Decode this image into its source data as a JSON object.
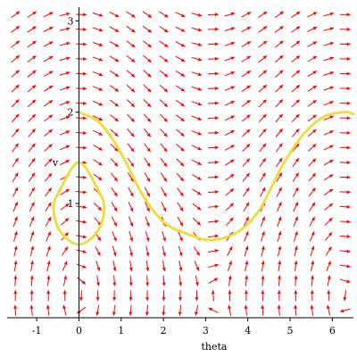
{
  "chart_data": {
    "type": "vector_field_phase_portrait",
    "xlabel": "theta",
    "ylabel": "v",
    "xlim": [
      -1.7,
      6.5
    ],
    "ylim": [
      -0.25,
      3.15
    ],
    "x_ticks": [
      -1,
      0,
      1,
      2,
      3,
      4,
      5,
      6
    ],
    "y_ticks": [
      1,
      2,
      3
    ],
    "field": {
      "equations": "theta' = v, v' = -sin(theta)",
      "grid_columns": 21,
      "grid_rows": 21,
      "arrow_color": "#ff0000"
    },
    "trajectories": [
      {
        "color": "#e8e040",
        "description": "closed orbit around (0, 1)",
        "points": [
          [
            0.0,
            1.45
          ],
          [
            0.45,
            1.15
          ],
          [
            0.6,
            0.95
          ],
          [
            0.45,
            0.7
          ],
          [
            0.0,
            0.55
          ],
          [
            -0.45,
            0.7
          ],
          [
            -0.6,
            0.95
          ],
          [
            -0.45,
            1.15
          ],
          [
            0.0,
            1.45
          ]
        ]
      },
      {
        "color": "#e8e040",
        "description": "wave-shaped open trajectory",
        "points": [
          [
            0.0,
            2.0
          ],
          [
            0.5,
            1.88
          ],
          [
            1.0,
            1.55
          ],
          [
            1.5,
            1.1
          ],
          [
            2.0,
            0.8
          ],
          [
            2.5,
            0.68
          ],
          [
            3.14,
            0.6
          ],
          [
            3.8,
            0.7
          ],
          [
            4.3,
            0.95
          ],
          [
            4.8,
            1.4
          ],
          [
            5.3,
            1.75
          ],
          [
            5.8,
            1.95
          ],
          [
            6.3,
            2.0
          ],
          [
            6.5,
            1.98
          ]
        ]
      }
    ]
  }
}
